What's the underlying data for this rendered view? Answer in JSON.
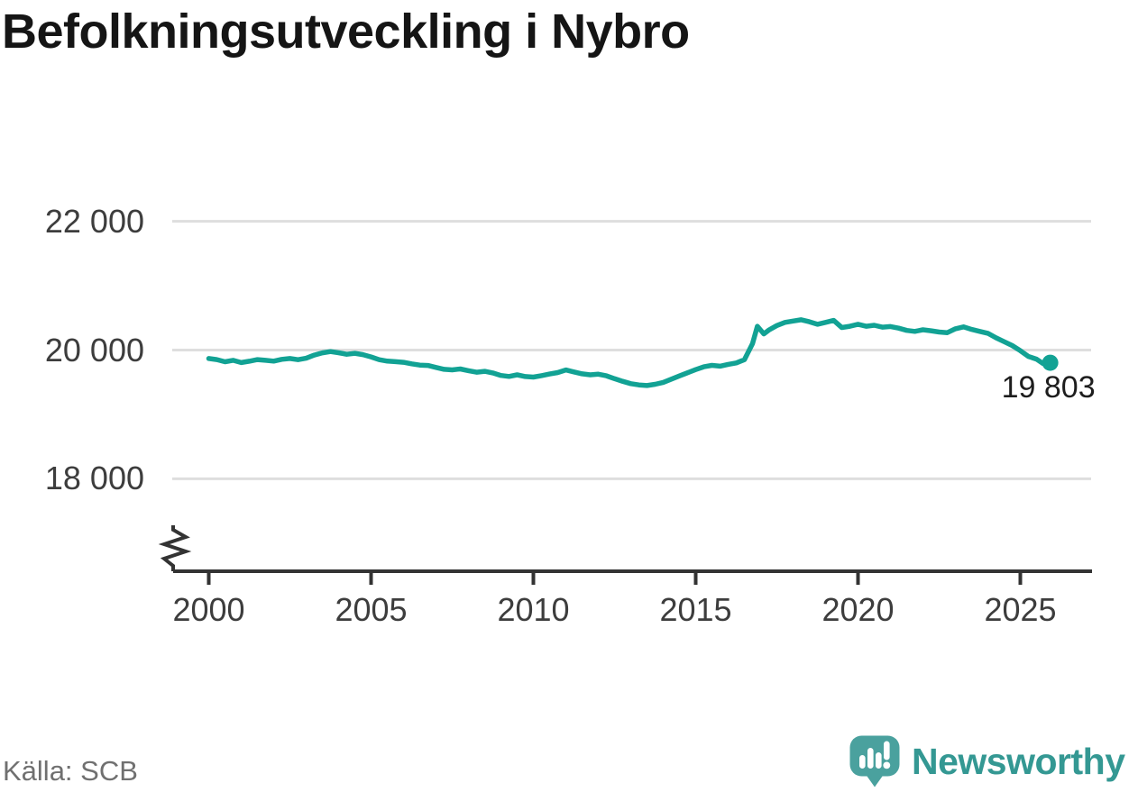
{
  "chart_data": {
    "type": "line",
    "title": "Befolkningsutveckling i Nybro",
    "end_label": "19 803",
    "end_value": 19803,
    "line_color": "#12a294",
    "grid_color": "#dedede",
    "axis_color": "#333333",
    "axis_break": true,
    "legend": "none",
    "grid": "horizontal",
    "ylim": [
      17600,
      22400
    ],
    "xlim": [
      1999.7,
      2027.2
    ],
    "yticks": [
      {
        "value": 18000,
        "label": "18 000"
      },
      {
        "value": 20000,
        "label": "20 000"
      },
      {
        "value": 22000,
        "label": "22 000"
      }
    ],
    "xticks": [
      {
        "value": 2000,
        "label": "2000"
      },
      {
        "value": 2005,
        "label": "2005"
      },
      {
        "value": 2010,
        "label": "2010"
      },
      {
        "value": 2015,
        "label": "2015"
      },
      {
        "value": 2020,
        "label": "2020"
      },
      {
        "value": 2025,
        "label": "2025"
      }
    ],
    "x": [
      2000,
      2000.25,
      2000.5,
      2000.75,
      2001,
      2001.25,
      2001.5,
      2001.75,
      2002,
      2002.25,
      2002.5,
      2002.75,
      2003,
      2003.25,
      2003.5,
      2003.75,
      2004,
      2004.25,
      2004.5,
      2004.75,
      2005,
      2005.25,
      2005.5,
      2005.75,
      2006,
      2006.25,
      2006.5,
      2006.75,
      2007,
      2007.25,
      2007.5,
      2007.75,
      2008,
      2008.25,
      2008.5,
      2008.75,
      2009,
      2009.25,
      2009.5,
      2009.75,
      2010,
      2010.25,
      2010.5,
      2010.75,
      2011,
      2011.25,
      2011.5,
      2011.75,
      2012,
      2012.25,
      2012.5,
      2012.75,
      2013,
      2013.25,
      2013.5,
      2013.75,
      2014,
      2014.25,
      2014.5,
      2014.75,
      2015,
      2015.25,
      2015.5,
      2015.75,
      2016,
      2016.25,
      2016.5,
      2016.75,
      2016.9,
      2017.1,
      2017.25,
      2017.5,
      2017.75,
      2018,
      2018.25,
      2018.5,
      2018.75,
      2019,
      2019.25,
      2019.5,
      2019.75,
      2020,
      2020.25,
      2020.5,
      2020.75,
      2021,
      2021.25,
      2021.5,
      2021.75,
      2022,
      2022.25,
      2022.5,
      2022.75,
      2023,
      2023.25,
      2023.5,
      2023.75,
      2024,
      2024.25,
      2024.5,
      2024.75,
      2025,
      2025.25,
      2025.5,
      2025.7,
      2025.92
    ],
    "values": [
      19868,
      19852,
      19818,
      19840,
      19806,
      19826,
      19852,
      19840,
      19828,
      19856,
      19868,
      19850,
      19872,
      19922,
      19956,
      19976,
      19958,
      19934,
      19950,
      19928,
      19894,
      19850,
      19828,
      19820,
      19810,
      19786,
      19766,
      19760,
      19730,
      19700,
      19692,
      19706,
      19680,
      19656,
      19670,
      19645,
      19605,
      19590,
      19615,
      19588,
      19580,
      19602,
      19628,
      19650,
      19690,
      19660,
      19630,
      19615,
      19625,
      19600,
      19555,
      19515,
      19478,
      19458,
      19448,
      19468,
      19498,
      19548,
      19598,
      19648,
      19696,
      19740,
      19762,
      19750,
      19778,
      19800,
      19850,
      20100,
      20370,
      20250,
      20310,
      20380,
      20430,
      20450,
      20470,
      20440,
      20400,
      20430,
      20460,
      20350,
      20370,
      20400,
      20370,
      20385,
      20355,
      20365,
      20340,
      20305,
      20290,
      20315,
      20300,
      20280,
      20270,
      20330,
      20360,
      20320,
      20290,
      20260,
      20190,
      20130,
      20070,
      19990,
      19900,
      19858,
      19790,
      19803
    ]
  },
  "footer": {
    "source": "Källa: SCB",
    "brand": "Newsworthy",
    "brand_color": "#349893",
    "logo_icon": "speech-bubble-bar-chart-exclamation-icon",
    "logo_icon_color": "#4aa19e"
  }
}
